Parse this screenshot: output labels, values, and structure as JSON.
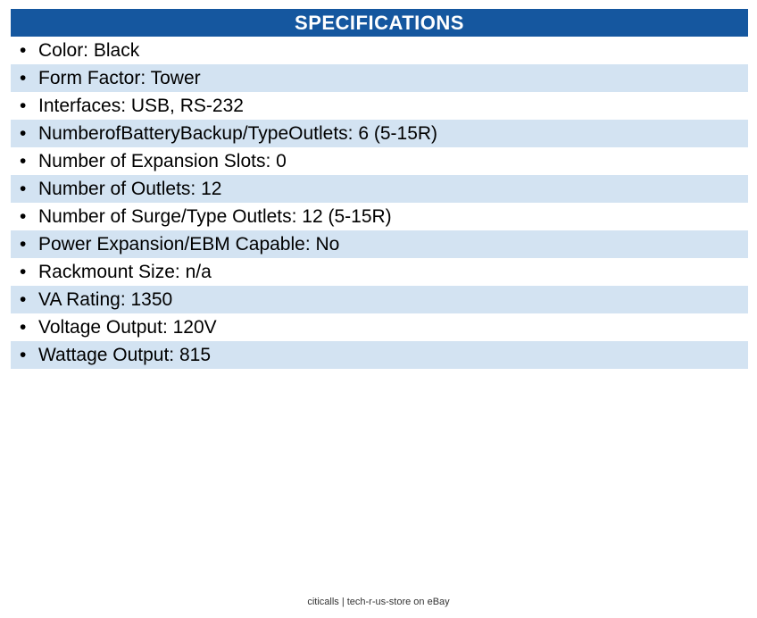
{
  "header": {
    "title": "SPECIFICATIONS"
  },
  "bullet_char": "•",
  "specs": [
    {
      "label": "Color",
      "value": "Black"
    },
    {
      "label": "Form Factor",
      "value": "Tower"
    },
    {
      "label": "Interfaces",
      "value": "USB, RS-232"
    },
    {
      "label": "NumberofBatteryBackup/TypeOutlets",
      "value": "6 (5-15R)"
    },
    {
      "label": "Number of Expansion Slots",
      "value": "0"
    },
    {
      "label": "Number of Outlets",
      "value": "12"
    },
    {
      "label": "Number of Surge/Type Outlets",
      "value": "12 (5-15R)"
    },
    {
      "label": "Power Expansion/EBM Capable",
      "value": "No"
    },
    {
      "label": "Rackmount Size",
      "value": "n/a"
    },
    {
      "label": "VA Rating",
      "value": "1350"
    },
    {
      "label": "Voltage Output",
      "value": "120V"
    },
    {
      "label": "Wattage Output",
      "value": "815"
    }
  ],
  "footer": {
    "text": "citicalls | tech-r-us-store on eBay"
  },
  "colors": {
    "header_bg": "#15579F",
    "header_text": "#FFFFFF",
    "row_alt_bg": "#D3E3F2",
    "row_text": "#000000",
    "footer_text": "#333333"
  }
}
